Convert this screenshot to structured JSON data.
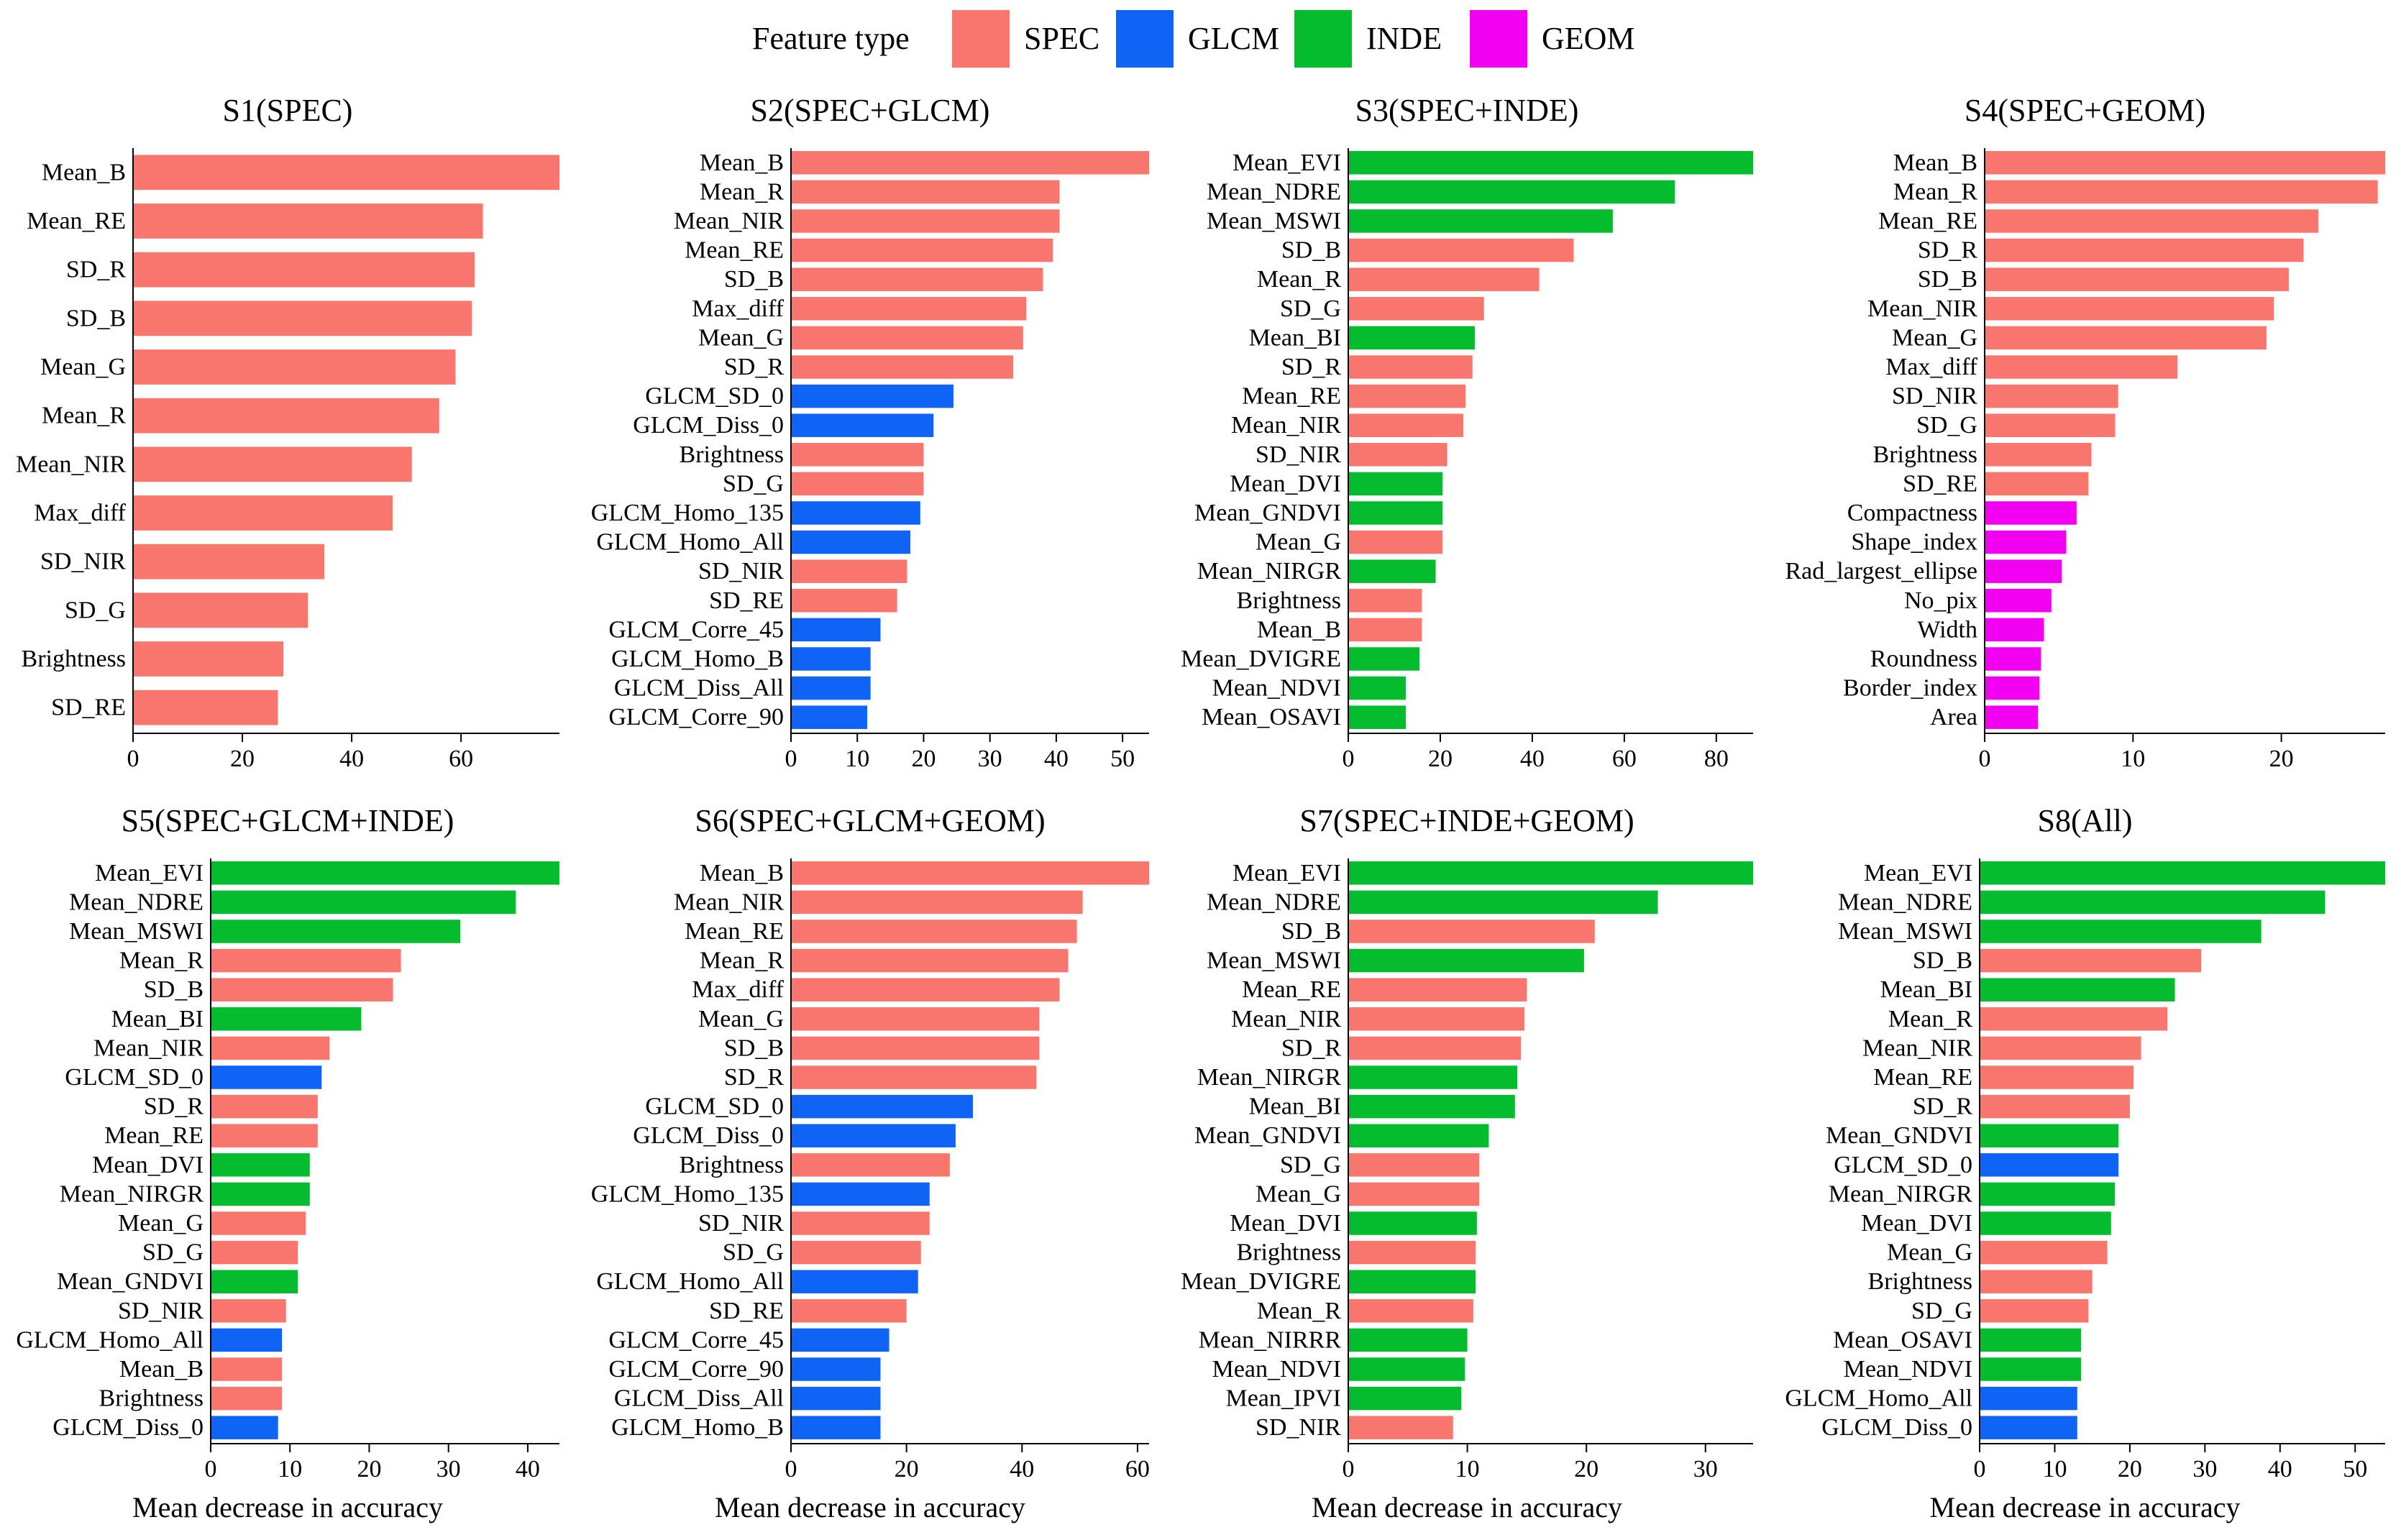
{
  "legend": {
    "title": "Feature type",
    "items": [
      {
        "label": "SPEC",
        "color": "#F8766D"
      },
      {
        "label": "GLCM",
        "color": "#0F63F5"
      },
      {
        "label": "INDE",
        "color": "#04BC2E"
      },
      {
        "label": "GEOM",
        "color": "#F200F2"
      }
    ]
  },
  "colors": {
    "SPEC": "#F8766D",
    "GLCM": "#0F63F5",
    "INDE": "#04BC2E",
    "GEOM": "#F200F2"
  },
  "chart_data": [
    {
      "type": "bar",
      "orientation": "horizontal",
      "title": "S1(SPEC)",
      "xlabel": "",
      "xlim": [
        0,
        78
      ],
      "xticks": [
        0,
        20,
        40,
        60
      ],
      "bars": [
        {
          "label": "Mean_B",
          "value": 78,
          "type": "SPEC"
        },
        {
          "label": "Mean_RE",
          "value": 64,
          "type": "SPEC"
        },
        {
          "label": "SD_R",
          "value": 62.5,
          "type": "SPEC"
        },
        {
          "label": "SD_B",
          "value": 62,
          "type": "SPEC"
        },
        {
          "label": "Mean_G",
          "value": 59,
          "type": "SPEC"
        },
        {
          "label": "Mean_R",
          "value": 56,
          "type": "SPEC"
        },
        {
          "label": "Mean_NIR",
          "value": 51,
          "type": "SPEC"
        },
        {
          "label": "Max_diff",
          "value": 47.5,
          "type": "SPEC"
        },
        {
          "label": "SD_NIR",
          "value": 35,
          "type": "SPEC"
        },
        {
          "label": "SD_G",
          "value": 32,
          "type": "SPEC"
        },
        {
          "label": "Brightness",
          "value": 27.5,
          "type": "SPEC"
        },
        {
          "label": "SD_RE",
          "value": 26.5,
          "type": "SPEC"
        }
      ]
    },
    {
      "type": "bar",
      "orientation": "horizontal",
      "title": "S2(SPEC+GLCM)",
      "xlabel": "",
      "xlim": [
        0,
        54
      ],
      "xticks": [
        0,
        10,
        20,
        30,
        40,
        50
      ],
      "bars": [
        {
          "label": "Mean_B",
          "value": 54,
          "type": "SPEC"
        },
        {
          "label": "Mean_R",
          "value": 40.5,
          "type": "SPEC"
        },
        {
          "label": "Mean_NIR",
          "value": 40.5,
          "type": "SPEC"
        },
        {
          "label": "Mean_RE",
          "value": 39.5,
          "type": "SPEC"
        },
        {
          "label": "SD_B",
          "value": 38,
          "type": "SPEC"
        },
        {
          "label": "Max_diff",
          "value": 35.5,
          "type": "SPEC"
        },
        {
          "label": "Mean_G",
          "value": 35,
          "type": "SPEC"
        },
        {
          "label": "SD_R",
          "value": 33.5,
          "type": "SPEC"
        },
        {
          "label": "GLCM_SD_0",
          "value": 24.5,
          "type": "GLCM"
        },
        {
          "label": "GLCM_Diss_0",
          "value": 21.5,
          "type": "GLCM"
        },
        {
          "label": "Brightness",
          "value": 20,
          "type": "SPEC"
        },
        {
          "label": "SD_G",
          "value": 20,
          "type": "SPEC"
        },
        {
          "label": "GLCM_Homo_135",
          "value": 19.5,
          "type": "GLCM"
        },
        {
          "label": "GLCM_Homo_All",
          "value": 18,
          "type": "GLCM"
        },
        {
          "label": "SD_NIR",
          "value": 17.5,
          "type": "SPEC"
        },
        {
          "label": "SD_RE",
          "value": 16,
          "type": "SPEC"
        },
        {
          "label": "GLCM_Corre_45",
          "value": 13.5,
          "type": "GLCM"
        },
        {
          "label": "GLCM_Homo_B",
          "value": 12,
          "type": "GLCM"
        },
        {
          "label": "GLCM_Diss_All",
          "value": 12,
          "type": "GLCM"
        },
        {
          "label": "GLCM_Corre_90",
          "value": 11.5,
          "type": "GLCM"
        }
      ]
    },
    {
      "type": "bar",
      "orientation": "horizontal",
      "title": "S3(SPEC+INDE)",
      "xlabel": "",
      "xlim": [
        0,
        88
      ],
      "xticks": [
        0,
        20,
        40,
        60,
        80
      ],
      "bars": [
        {
          "label": "Mean_EVI",
          "value": 88,
          "type": "INDE"
        },
        {
          "label": "Mean_NDRE",
          "value": 71,
          "type": "INDE"
        },
        {
          "label": "Mean_MSWI",
          "value": 57.5,
          "type": "INDE"
        },
        {
          "label": "SD_B",
          "value": 49,
          "type": "SPEC"
        },
        {
          "label": "Mean_R",
          "value": 41.5,
          "type": "SPEC"
        },
        {
          "label": "SD_G",
          "value": 29.5,
          "type": "SPEC"
        },
        {
          "label": "Mean_BI",
          "value": 27.5,
          "type": "INDE"
        },
        {
          "label": "SD_R",
          "value": 27,
          "type": "SPEC"
        },
        {
          "label": "Mean_RE",
          "value": 25.5,
          "type": "SPEC"
        },
        {
          "label": "Mean_NIR",
          "value": 25,
          "type": "SPEC"
        },
        {
          "label": "SD_NIR",
          "value": 21.5,
          "type": "SPEC"
        },
        {
          "label": "Mean_DVI",
          "value": 20.5,
          "type": "INDE"
        },
        {
          "label": "Mean_GNDVI",
          "value": 20.5,
          "type": "INDE"
        },
        {
          "label": "Mean_G",
          "value": 20.5,
          "type": "SPEC"
        },
        {
          "label": "Mean_NIRGR",
          "value": 19,
          "type": "INDE"
        },
        {
          "label": "Brightness",
          "value": 16,
          "type": "SPEC"
        },
        {
          "label": "Mean_B",
          "value": 16,
          "type": "SPEC"
        },
        {
          "label": "Mean_DVIGRE",
          "value": 15.5,
          "type": "INDE"
        },
        {
          "label": "Mean_NDVI",
          "value": 12.5,
          "type": "INDE"
        },
        {
          "label": "Mean_OSAVI",
          "value": 12.5,
          "type": "INDE"
        }
      ]
    },
    {
      "type": "bar",
      "orientation": "horizontal",
      "title": "S4(SPEC+GEOM)",
      "xlabel": "",
      "xlim": [
        0,
        27
      ],
      "xticks": [
        0,
        10,
        20
      ],
      "bars": [
        {
          "label": "Mean_B",
          "value": 27,
          "type": "SPEC"
        },
        {
          "label": "Mean_R",
          "value": 26.5,
          "type": "SPEC"
        },
        {
          "label": "Mean_RE",
          "value": 22.5,
          "type": "SPEC"
        },
        {
          "label": "SD_R",
          "value": 21.5,
          "type": "SPEC"
        },
        {
          "label": "SD_B",
          "value": 20.5,
          "type": "SPEC"
        },
        {
          "label": "Mean_NIR",
          "value": 19.5,
          "type": "SPEC"
        },
        {
          "label": "Mean_G",
          "value": 19,
          "type": "SPEC"
        },
        {
          "label": "Max_diff",
          "value": 13,
          "type": "SPEC"
        },
        {
          "label": "SD_NIR",
          "value": 9,
          "type": "SPEC"
        },
        {
          "label": "SD_G",
          "value": 8.8,
          "type": "SPEC"
        },
        {
          "label": "Brightness",
          "value": 7.2,
          "type": "SPEC"
        },
        {
          "label": "SD_RE",
          "value": 7,
          "type": "SPEC"
        },
        {
          "label": "Compactness",
          "value": 6.2,
          "type": "GEOM"
        },
        {
          "label": "Shape_index",
          "value": 5.5,
          "type": "GEOM"
        },
        {
          "label": "Rad_largest_ellipse",
          "value": 5.2,
          "type": "GEOM"
        },
        {
          "label": "No_pix",
          "value": 4.5,
          "type": "GEOM"
        },
        {
          "label": "Width",
          "value": 4,
          "type": "GEOM"
        },
        {
          "label": "Roundness",
          "value": 3.8,
          "type": "GEOM"
        },
        {
          "label": "Border_index",
          "value": 3.7,
          "type": "GEOM"
        },
        {
          "label": "Area",
          "value": 3.6,
          "type": "GEOM"
        }
      ]
    },
    {
      "type": "bar",
      "orientation": "horizontal",
      "title": "S5(SPEC+GLCM+INDE)",
      "xlabel": "Mean decrease in accuracy",
      "xlim": [
        0,
        44
      ],
      "xticks": [
        0,
        10,
        20,
        30,
        40
      ],
      "bars": [
        {
          "label": "Mean_EVI",
          "value": 44,
          "type": "INDE"
        },
        {
          "label": "Mean_NDRE",
          "value": 38.5,
          "type": "INDE"
        },
        {
          "label": "Mean_MSWI",
          "value": 31.5,
          "type": "INDE"
        },
        {
          "label": "Mean_R",
          "value": 24,
          "type": "SPEC"
        },
        {
          "label": "SD_B",
          "value": 23,
          "type": "SPEC"
        },
        {
          "label": "Mean_BI",
          "value": 19,
          "type": "INDE"
        },
        {
          "label": "Mean_NIR",
          "value": 15,
          "type": "SPEC"
        },
        {
          "label": "GLCM_SD_0",
          "value": 14,
          "type": "GLCM"
        },
        {
          "label": "SD_R",
          "value": 13.5,
          "type": "SPEC"
        },
        {
          "label": "Mean_RE",
          "value": 13.5,
          "type": "SPEC"
        },
        {
          "label": "Mean_DVI",
          "value": 12.5,
          "type": "INDE"
        },
        {
          "label": "Mean_NIRGR",
          "value": 12.5,
          "type": "INDE"
        },
        {
          "label": "Mean_G",
          "value": 12,
          "type": "SPEC"
        },
        {
          "label": "SD_G",
          "value": 11,
          "type": "SPEC"
        },
        {
          "label": "Mean_GNDVI",
          "value": 11,
          "type": "INDE"
        },
        {
          "label": "SD_NIR",
          "value": 9.5,
          "type": "SPEC"
        },
        {
          "label": "GLCM_Homo_All",
          "value": 9,
          "type": "GLCM"
        },
        {
          "label": "Mean_B",
          "value": 9,
          "type": "SPEC"
        },
        {
          "label": "Brightness",
          "value": 9,
          "type": "SPEC"
        },
        {
          "label": "GLCM_Diss_0",
          "value": 8.5,
          "type": "GLCM"
        }
      ]
    },
    {
      "type": "bar",
      "orientation": "horizontal",
      "title": "S6(SPEC+GLCM+GEOM)",
      "xlabel": "Mean decrease in accuracy",
      "xlim": [
        0,
        62
      ],
      "xticks": [
        0,
        20,
        40,
        60
      ],
      "bars": [
        {
          "label": "Mean_B",
          "value": 62,
          "type": "SPEC"
        },
        {
          "label": "Mean_NIR",
          "value": 50.5,
          "type": "SPEC"
        },
        {
          "label": "Mean_RE",
          "value": 49.5,
          "type": "SPEC"
        },
        {
          "label": "Mean_R",
          "value": 48,
          "type": "SPEC"
        },
        {
          "label": "Max_diff",
          "value": 46.5,
          "type": "SPEC"
        },
        {
          "label": "Mean_G",
          "value": 43,
          "type": "SPEC"
        },
        {
          "label": "SD_B",
          "value": 43,
          "type": "SPEC"
        },
        {
          "label": "SD_R",
          "value": 42.5,
          "type": "SPEC"
        },
        {
          "label": "GLCM_SD_0",
          "value": 31.5,
          "type": "GLCM"
        },
        {
          "label": "GLCM_Diss_0",
          "value": 28.5,
          "type": "GLCM"
        },
        {
          "label": "Brightness",
          "value": 27.5,
          "type": "SPEC"
        },
        {
          "label": "GLCM_Homo_135",
          "value": 24,
          "type": "GLCM"
        },
        {
          "label": "SD_NIR",
          "value": 24,
          "type": "SPEC"
        },
        {
          "label": "SD_G",
          "value": 22.5,
          "type": "SPEC"
        },
        {
          "label": "GLCM_Homo_All",
          "value": 22,
          "type": "GLCM"
        },
        {
          "label": "SD_RE",
          "value": 20,
          "type": "SPEC"
        },
        {
          "label": "GLCM_Corre_45",
          "value": 17,
          "type": "GLCM"
        },
        {
          "label": "GLCM_Corre_90",
          "value": 15.5,
          "type": "GLCM"
        },
        {
          "label": "GLCM_Diss_All",
          "value": 15.5,
          "type": "GLCM"
        },
        {
          "label": "GLCM_Homo_B",
          "value": 15.5,
          "type": "GLCM"
        }
      ]
    },
    {
      "type": "bar",
      "orientation": "horizontal",
      "title": "S7(SPEC+INDE+GEOM)",
      "xlabel": "Mean decrease in accuracy",
      "xlim": [
        0,
        34
      ],
      "xticks": [
        0,
        10,
        20,
        30
      ],
      "bars": [
        {
          "label": "Mean_EVI",
          "value": 34,
          "type": "INDE"
        },
        {
          "label": "Mean_NDRE",
          "value": 26,
          "type": "INDE"
        },
        {
          "label": "SD_B",
          "value": 20.7,
          "type": "SPEC"
        },
        {
          "label": "Mean_MSWI",
          "value": 19.8,
          "type": "INDE"
        },
        {
          "label": "Mean_RE",
          "value": 15,
          "type": "SPEC"
        },
        {
          "label": "Mean_NIR",
          "value": 14.8,
          "type": "SPEC"
        },
        {
          "label": "SD_R",
          "value": 14.5,
          "type": "SPEC"
        },
        {
          "label": "Mean_NIRGR",
          "value": 14.2,
          "type": "INDE"
        },
        {
          "label": "Mean_BI",
          "value": 14,
          "type": "INDE"
        },
        {
          "label": "Mean_GNDVI",
          "value": 11.8,
          "type": "INDE"
        },
        {
          "label": "SD_G",
          "value": 11,
          "type": "SPEC"
        },
        {
          "label": "Mean_G",
          "value": 11,
          "type": "SPEC"
        },
        {
          "label": "Mean_DVI",
          "value": 10.8,
          "type": "INDE"
        },
        {
          "label": "Brightness",
          "value": 10.7,
          "type": "SPEC"
        },
        {
          "label": "Mean_DVIGRE",
          "value": 10.7,
          "type": "INDE"
        },
        {
          "label": "Mean_R",
          "value": 10.5,
          "type": "SPEC"
        },
        {
          "label": "Mean_NIRRR",
          "value": 10,
          "type": "INDE"
        },
        {
          "label": "Mean_NDVI",
          "value": 9.8,
          "type": "INDE"
        },
        {
          "label": "Mean_IPVI",
          "value": 9.5,
          "type": "INDE"
        },
        {
          "label": "SD_NIR",
          "value": 8.8,
          "type": "SPEC"
        }
      ]
    },
    {
      "type": "bar",
      "orientation": "horizontal",
      "title": "S8(All)",
      "xlabel": "Mean decrease in accuracy",
      "xlim": [
        0,
        54
      ],
      "xticks": [
        0,
        10,
        20,
        30,
        40,
        50
      ],
      "bars": [
        {
          "label": "Mean_EVI",
          "value": 54,
          "type": "INDE"
        },
        {
          "label": "Mean_NDRE",
          "value": 46,
          "type": "INDE"
        },
        {
          "label": "Mean_MSWI",
          "value": 37.5,
          "type": "INDE"
        },
        {
          "label": "SD_B",
          "value": 29.5,
          "type": "SPEC"
        },
        {
          "label": "Mean_BI",
          "value": 26,
          "type": "INDE"
        },
        {
          "label": "Mean_R",
          "value": 25,
          "type": "SPEC"
        },
        {
          "label": "Mean_NIR",
          "value": 21.5,
          "type": "SPEC"
        },
        {
          "label": "Mean_RE",
          "value": 20.5,
          "type": "SPEC"
        },
        {
          "label": "SD_R",
          "value": 20,
          "type": "SPEC"
        },
        {
          "label": "Mean_GNDVI",
          "value": 18.5,
          "type": "INDE"
        },
        {
          "label": "GLCM_SD_0",
          "value": 18.5,
          "type": "GLCM"
        },
        {
          "label": "Mean_NIRGR",
          "value": 18,
          "type": "INDE"
        },
        {
          "label": "Mean_DVI",
          "value": 17.5,
          "type": "INDE"
        },
        {
          "label": "Mean_G",
          "value": 17,
          "type": "SPEC"
        },
        {
          "label": "Brightness",
          "value": 15,
          "type": "SPEC"
        },
        {
          "label": "SD_G",
          "value": 14.5,
          "type": "SPEC"
        },
        {
          "label": "Mean_OSAVI",
          "value": 13.5,
          "type": "INDE"
        },
        {
          "label": "Mean_NDVI",
          "value": 13.5,
          "type": "INDE"
        },
        {
          "label": "GLCM_Homo_All",
          "value": 13,
          "type": "GLCM"
        },
        {
          "label": "GLCM_Diss_0",
          "value": 13,
          "type": "GLCM"
        }
      ]
    }
  ]
}
